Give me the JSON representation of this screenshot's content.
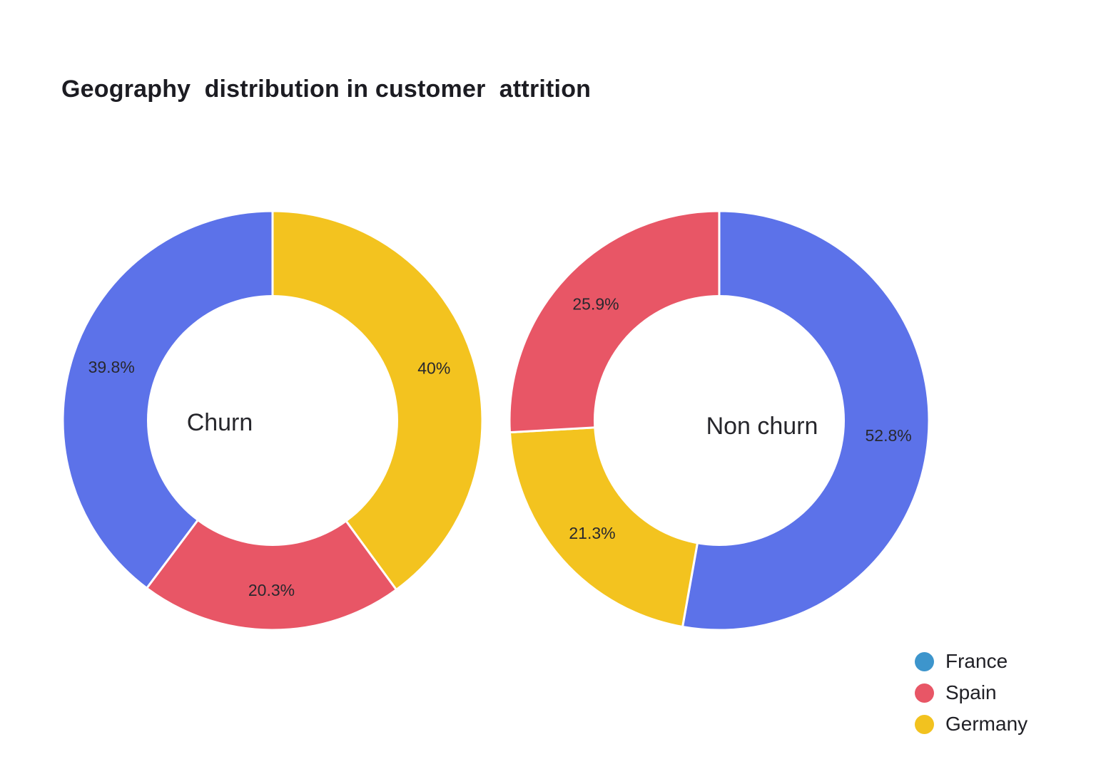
{
  "title": {
    "text": "Geography  distribution in customer  attrition"
  },
  "chart_data": {
    "type": "pie",
    "subtype": "donut",
    "hole_ratio": 0.6,
    "start_angle": "top",
    "direction": "clockwise",
    "unit": "%",
    "background": "#FFFFFF",
    "charts": [
      {
        "name": "churn",
        "center_label": "Churn",
        "slices": [
          {
            "category": "Germany",
            "value": 40,
            "display": "40%",
            "color": "#F3C31F"
          },
          {
            "category": "Spain",
            "value": 20.3,
            "display": "20.3%",
            "color": "#E85666"
          },
          {
            "category": "France",
            "value": 39.8,
            "display": "39.8%",
            "color": "#5C72E9"
          }
        ]
      },
      {
        "name": "non-churn",
        "center_label": "Non churn",
        "slices": [
          {
            "category": "France",
            "value": 52.8,
            "display": "52.8%",
            "color": "#5C72E9"
          },
          {
            "category": "Germany",
            "value": 21.3,
            "display": "21.3%",
            "color": "#F3C31F"
          },
          {
            "category": "Spain",
            "value": 25.9,
            "display": "25.9%",
            "color": "#E85666"
          }
        ]
      }
    ],
    "legend": {
      "position": "bottom-right",
      "items": [
        {
          "label": "France",
          "color": "#3D95CC"
        },
        {
          "label": "Spain",
          "color": "#E85666"
        },
        {
          "label": "Germany",
          "color": "#F2C21F"
        }
      ]
    },
    "colors": {
      "slice_blue": "#5C72E9",
      "slice_red": "#E85666",
      "slice_yellow": "#F3C31F",
      "label_text": "#28282E",
      "title_text": "#1C1C22"
    }
  }
}
